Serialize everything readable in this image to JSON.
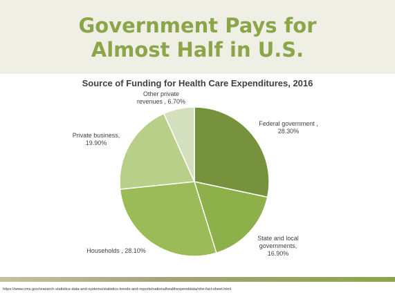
{
  "slide": {
    "title_line1": "Government Pays for",
    "title_line2": "Almost Half in U.S.",
    "source_url": "https://www.cms.gov/research-statistics-data-and-systems/statistics-trends-and-reports/nationalhealthexpenddata/nhe-fact-sheet.html"
  },
  "chart_data": {
    "type": "pie",
    "title": "Source of Funding for Health Care Expenditures, 2016",
    "slices": [
      {
        "label": "Federal government ,\n28.30%",
        "value": 28.3,
        "color": "#76923c"
      },
      {
        "label": "State and local\ngovernments,\n16.90%",
        "value": 16.9,
        "color": "#8db04a"
      },
      {
        "label": "Households , 28.10%",
        "value": 28.1,
        "color": "#9bbb59"
      },
      {
        "label": "Private business,\n19.90%",
        "value": 19.9,
        "color": "#b8cf8a"
      },
      {
        "label": "Other private\nrevenues , 6.70%",
        "value": 6.7,
        "color": "#d4dfbe"
      }
    ]
  }
}
